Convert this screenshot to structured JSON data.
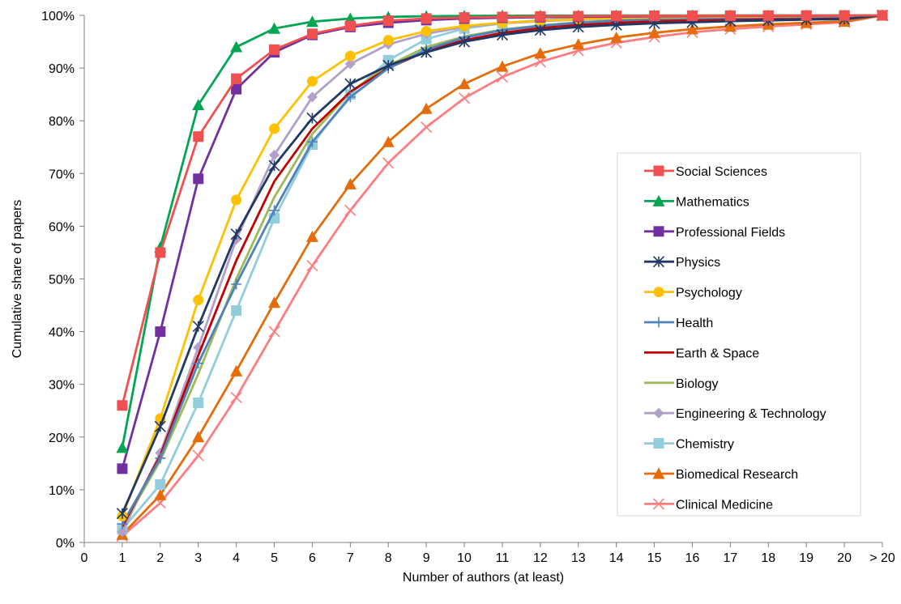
{
  "chart_data": {
    "type": "line",
    "xlabel": "Number of authors (at least)",
    "ylabel": "Cumulative share of papers",
    "x_ticks": [
      "0",
      "1",
      "2",
      "3",
      "4",
      "5",
      "6",
      "7",
      "8",
      "9",
      "10",
      "11",
      "12",
      "13",
      "14",
      "15",
      "16",
      "17",
      "18",
      "19",
      "20",
      "> 20"
    ],
    "y_ticks": [
      "0%",
      "10%",
      "20%",
      "30%",
      "40%",
      "50%",
      "60%",
      "70%",
      "80%",
      "90%",
      "100%"
    ],
    "ylim": [
      0,
      100
    ],
    "y_unit": "%",
    "grid": false,
    "legend_position": "right",
    "x": [
      1,
      2,
      3,
      4,
      5,
      6,
      7,
      8,
      9,
      10,
      11,
      12,
      13,
      14,
      15,
      16,
      17,
      18,
      19,
      20,
      21
    ],
    "series": [
      {
        "name": "Social Sciences",
        "color": "#F0504F",
        "marker": "square",
        "values": [
          26,
          55,
          77,
          88,
          93.5,
          96.5,
          98,
          99,
          99.4,
          99.6,
          99.7,
          99.8,
          99.85,
          99.9,
          99.92,
          99.94,
          99.95,
          99.96,
          99.97,
          99.98,
          100
        ]
      },
      {
        "name": "Mathematics",
        "color": "#00A651",
        "marker": "triangle",
        "values": [
          18,
          56,
          83,
          94,
          97.5,
          98.8,
          99.4,
          99.7,
          99.85,
          99.9,
          99.93,
          99.95,
          99.96,
          99.97,
          99.98,
          99.98,
          99.99,
          99.99,
          99.99,
          99.99,
          100
        ]
      },
      {
        "name": "Professional Fields",
        "color": "#7030A0",
        "marker": "square",
        "values": [
          14,
          40,
          69,
          86,
          93,
          96.3,
          97.8,
          98.6,
          99.1,
          99.4,
          99.55,
          99.65,
          99.72,
          99.78,
          99.82,
          99.85,
          99.88,
          99.9,
          99.92,
          99.94,
          100
        ]
      },
      {
        "name": "Physics",
        "color": "#1F3864",
        "marker": "asterisk",
        "values": [
          5.5,
          22,
          41,
          58.5,
          71.5,
          80.5,
          87,
          90.5,
          93,
          95,
          96.3,
          97.2,
          97.8,
          98.2,
          98.5,
          98.7,
          98.9,
          99.05,
          99.2,
          99.3,
          100
        ]
      },
      {
        "name": "Psychology",
        "color": "#FFC000",
        "marker": "circle",
        "values": [
          5,
          23.5,
          46,
          65,
          78.5,
          87.5,
          92.3,
          95.3,
          97,
          98,
          98.6,
          99,
          99.3,
          99.5,
          99.6,
          99.7,
          99.75,
          99.8,
          99.85,
          99.9,
          100
        ]
      },
      {
        "name": "Health",
        "color": "#4F81BD",
        "marker": "plus",
        "values": [
          3.5,
          16,
          34,
          49,
          63,
          76,
          84.5,
          90,
          93.5,
          95.8,
          97.2,
          98,
          98.6,
          99,
          99.3,
          99.45,
          99.55,
          99.65,
          99.72,
          99.8,
          100
        ]
      },
      {
        "name": "Earth & Space",
        "color": "#C00000",
        "marker": "none",
        "values": [
          3,
          16.5,
          35.5,
          53.5,
          68.5,
          78.5,
          85.5,
          90,
          93.2,
          95.3,
          96.7,
          97.6,
          98.2,
          98.6,
          98.9,
          99.1,
          99.3,
          99.45,
          99.55,
          99.65,
          100
        ]
      },
      {
        "name": "Biology",
        "color": "#9BBB59",
        "marker": "none",
        "values": [
          3,
          15.5,
          32,
          50,
          65.5,
          77.5,
          85.5,
          90.5,
          94,
          96,
          97.3,
          98.1,
          98.7,
          99.05,
          99.3,
          99.45,
          99.58,
          99.68,
          99.75,
          99.82,
          100
        ]
      },
      {
        "name": "Engineering & Technology",
        "color": "#B1A0C7",
        "marker": "diamond",
        "values": [
          2,
          17,
          37,
          57.5,
          73.5,
          84.5,
          90.8,
          94.5,
          96.5,
          97.8,
          98.5,
          98.9,
          99.2,
          99.4,
          99.55,
          99.65,
          99.72,
          99.8,
          99.85,
          99.9,
          100
        ]
      },
      {
        "name": "Chemistry",
        "color": "#92CDDC",
        "marker": "square",
        "values": [
          2.5,
          11,
          26.5,
          44,
          61.5,
          75.5,
          85,
          91.5,
          95.5,
          97.5,
          98.5,
          99.1,
          99.45,
          99.65,
          99.75,
          99.82,
          99.87,
          99.91,
          99.94,
          99.96,
          100
        ]
      },
      {
        "name": "Biomedical Research",
        "color": "#E46C0A",
        "marker": "triangle",
        "values": [
          1.5,
          9,
          20,
          32.5,
          45.5,
          58,
          68,
          76,
          82.3,
          87,
          90.3,
          92.8,
          94.5,
          95.8,
          96.7,
          97.4,
          97.9,
          98.3,
          98.6,
          98.85,
          100
        ]
      },
      {
        "name": "Clinical Medicine",
        "color": "#FF7C80",
        "marker": "x",
        "values": [
          1.2,
          7.5,
          16.5,
          27.5,
          40,
          52.5,
          63,
          72,
          78.8,
          84.3,
          88.3,
          91.2,
          93.3,
          94.8,
          95.9,
          96.8,
          97.4,
          97.9,
          98.3,
          98.7,
          100
        ]
      }
    ]
  }
}
